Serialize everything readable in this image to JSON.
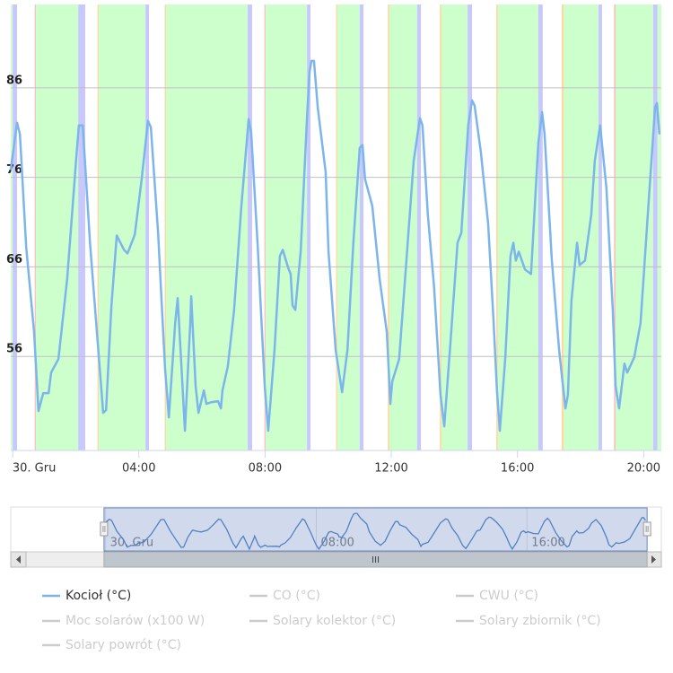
{
  "chart_data": {
    "type": "line",
    "x": [
      -0.06,
      0.14,
      0.23,
      0.43,
      0.68,
      0.82,
      0.97,
      1.14,
      1.22,
      1.45,
      1.73,
      2.02,
      2.1,
      2.22,
      2.45,
      2.67,
      2.87,
      2.96,
      3.13,
      3.3,
      3.53,
      3.64,
      3.87,
      4.09,
      4.29,
      4.38,
      4.61,
      4.83,
      4.95,
      5.15,
      5.23,
      5.32,
      5.46,
      5.63,
      5.66,
      5.8,
      5.89,
      6.06,
      6.14,
      6.31,
      6.51,
      6.6,
      6.65,
      6.82,
      7.02,
      7.25,
      7.48,
      7.56,
      7.76,
      7.99,
      8.1,
      8.3,
      8.47,
      8.56,
      8.73,
      8.81,
      8.87,
      8.96,
      9.13,
      9.33,
      9.41,
      9.47,
      9.55,
      9.67,
      9.92,
      10.01,
      10.24,
      10.44,
      10.61,
      10.8,
      11.0,
      11.09,
      11.17,
      11.4,
      11.63,
      11.86,
      11.97,
      12.03,
      12.25,
      12.48,
      12.71,
      12.91,
      12.99,
      13.16,
      13.36,
      13.56,
      13.68,
      13.88,
      14.1,
      14.22,
      14.44,
      14.56,
      14.64,
      14.84,
      15.07,
      15.24,
      15.35,
      15.44,
      15.61,
      15.78,
      15.87,
      15.95,
      16.04,
      16.24,
      16.43,
      16.66,
      16.78,
      16.86,
      17.09,
      17.32,
      17.52,
      17.6,
      17.71,
      17.89,
      17.97,
      18.14,
      18.34,
      18.45,
      18.62,
      18.82,
      19.02,
      19.11,
      19.22,
      19.39,
      19.48,
      19.7,
      19.9,
      20.13,
      20.36,
      20.42,
      20.5
    ],
    "series": [
      {
        "name": "Kocioł (°C)",
        "color": "#7cb5ec",
        "visible": true,
        "values": [
          76.8,
          82.1,
          80.8,
          68.2,
          58.7,
          49.9,
          51.9,
          51.9,
          54.2,
          55.7,
          64.7,
          78.3,
          81.8,
          81.8,
          68.7,
          58.7,
          49.7,
          50.0,
          61.7,
          69.5,
          67.9,
          67.5,
          69.6,
          75.8,
          82.3,
          81.6,
          69.8,
          54.7,
          49.2,
          59.7,
          62.5,
          56.7,
          47.7,
          59.9,
          62.7,
          52.7,
          49.7,
          52.2,
          50.7,
          50.9,
          51.0,
          50.2,
          52.2,
          54.9,
          61.2,
          72.8,
          82.5,
          81.0,
          68.7,
          52.7,
          47.7,
          56.7,
          67.2,
          67.9,
          65.9,
          65.2,
          61.7,
          61.2,
          67.7,
          82.8,
          87.8,
          89.0,
          89.0,
          83.8,
          76.6,
          67.7,
          56.7,
          52.0,
          56.7,
          68.7,
          79.3,
          79.6,
          75.8,
          72.8,
          64.7,
          58.7,
          50.7,
          53.2,
          55.7,
          66.7,
          77.8,
          82.6,
          81.8,
          71.8,
          63.7,
          51.7,
          48.2,
          57.7,
          68.7,
          69.8,
          81.8,
          84.6,
          84.0,
          78.8,
          70.8,
          60.2,
          52.2,
          47.7,
          55.7,
          67.2,
          68.7,
          66.7,
          67.7,
          65.7,
          65.2,
          79.8,
          83.3,
          80.8,
          66.7,
          56.7,
          50.2,
          51.7,
          62.2,
          68.7,
          66.2,
          66.7,
          71.8,
          77.8,
          81.8,
          74.8,
          61.2,
          52.7,
          50.2,
          55.2,
          54.2,
          55.9,
          59.7,
          71.8,
          83.8,
          84.3,
          80.8
        ]
      },
      {
        "name": "CO (°C)",
        "color": "#cccccc",
        "visible": false
      },
      {
        "name": "CWU (°C)",
        "color": "#cccccc",
        "visible": false
      },
      {
        "name": "Moc solarów (x100 W)",
        "color": "#cccccc",
        "visible": false
      },
      {
        "name": "Solary kolektor (°C)",
        "color": "#cccccc",
        "visible": false
      },
      {
        "name": "Solary zbiornik (°C)",
        "color": "#cccccc",
        "visible": false
      },
      {
        "name": "Solary powrót (°C)",
        "color": "#cccccc",
        "visible": false
      }
    ],
    "xlim": [
      -0.06,
      20.56
    ],
    "xticks": [
      {
        "value": 0,
        "label": "30. Gru"
      },
      {
        "value": 4,
        "label": "04:00"
      },
      {
        "value": 8,
        "label": "08:00"
      },
      {
        "value": 12,
        "label": "12:00"
      },
      {
        "value": 16,
        "label": "16:00"
      },
      {
        "value": 20,
        "label": "20:00"
      }
    ],
    "ylim": [
      45.5,
      95.3
    ],
    "yticks": [
      56,
      66,
      76,
      86
    ],
    "grid": true,
    "bands": [
      {
        "from": -0.06,
        "to": 0.0,
        "color": "#ccffcc"
      },
      {
        "from": 0.0,
        "to": 0.14,
        "color": "#c8c8ff"
      },
      {
        "from": 0.7,
        "to": 0.74,
        "color": "#ffc0c0"
      },
      {
        "from": 0.74,
        "to": 2.08,
        "color": "#ccffcc"
      },
      {
        "from": 2.08,
        "to": 2.3,
        "color": "#c8c8ff"
      },
      {
        "from": 2.69,
        "to": 2.73,
        "color": "#ffd8a0"
      },
      {
        "from": 2.73,
        "to": 4.21,
        "color": "#ccffcc"
      },
      {
        "from": 4.21,
        "to": 4.32,
        "color": "#c8c8ff"
      },
      {
        "from": 4.82,
        "to": 4.86,
        "color": "#ffd8a0"
      },
      {
        "from": 4.86,
        "to": 7.45,
        "color": "#ccffcc"
      },
      {
        "from": 7.45,
        "to": 7.59,
        "color": "#c8c8ff"
      },
      {
        "from": 7.98,
        "to": 8.02,
        "color": "#ffc0c0"
      },
      {
        "from": 8.02,
        "to": 9.33,
        "color": "#ccffcc"
      },
      {
        "from": 9.33,
        "to": 9.44,
        "color": "#c8c8ff"
      },
      {
        "from": 10.25,
        "to": 10.29,
        "color": "#ffd8a0"
      },
      {
        "from": 10.29,
        "to": 11.0,
        "color": "#ccffcc"
      },
      {
        "from": 11.0,
        "to": 11.12,
        "color": "#c8c8ff"
      },
      {
        "from": 11.89,
        "to": 11.94,
        "color": "#ffd8a0"
      },
      {
        "from": 11.94,
        "to": 12.82,
        "color": "#ccffcc"
      },
      {
        "from": 12.82,
        "to": 12.94,
        "color": "#c8c8ff"
      },
      {
        "from": 13.54,
        "to": 13.59,
        "color": "#ffd8a0"
      },
      {
        "from": 13.59,
        "to": 14.42,
        "color": "#ccffcc"
      },
      {
        "from": 14.42,
        "to": 14.56,
        "color": "#c8c8ff"
      },
      {
        "from": 15.33,
        "to": 15.38,
        "color": "#ffd8a0"
      },
      {
        "from": 15.38,
        "to": 16.66,
        "color": "#ccffcc"
      },
      {
        "from": 16.66,
        "to": 16.8,
        "color": "#c8c8ff"
      },
      {
        "from": 17.4,
        "to": 17.46,
        "color": "#ffd8a0"
      },
      {
        "from": 17.46,
        "to": 18.57,
        "color": "#ccffcc"
      },
      {
        "from": 18.57,
        "to": 18.68,
        "color": "#c8c8ff"
      },
      {
        "from": 19.06,
        "to": 19.11,
        "color": "#ffc0c0"
      },
      {
        "from": 19.11,
        "to": 20.3,
        "color": "#ccffcc"
      },
      {
        "from": 20.3,
        "to": 20.44,
        "color": "#c8c8ff"
      },
      {
        "from": 20.44,
        "to": 20.56,
        "color": "#ccffcc"
      }
    ],
    "navigator": {
      "xlim": [
        -3.6,
        21.1
      ],
      "xticks": [
        {
          "value": 0,
          "label": "30. Gru"
        },
        {
          "value": 8,
          "label": "08:00"
        },
        {
          "value": 16,
          "label": "16:00"
        }
      ]
    }
  }
}
